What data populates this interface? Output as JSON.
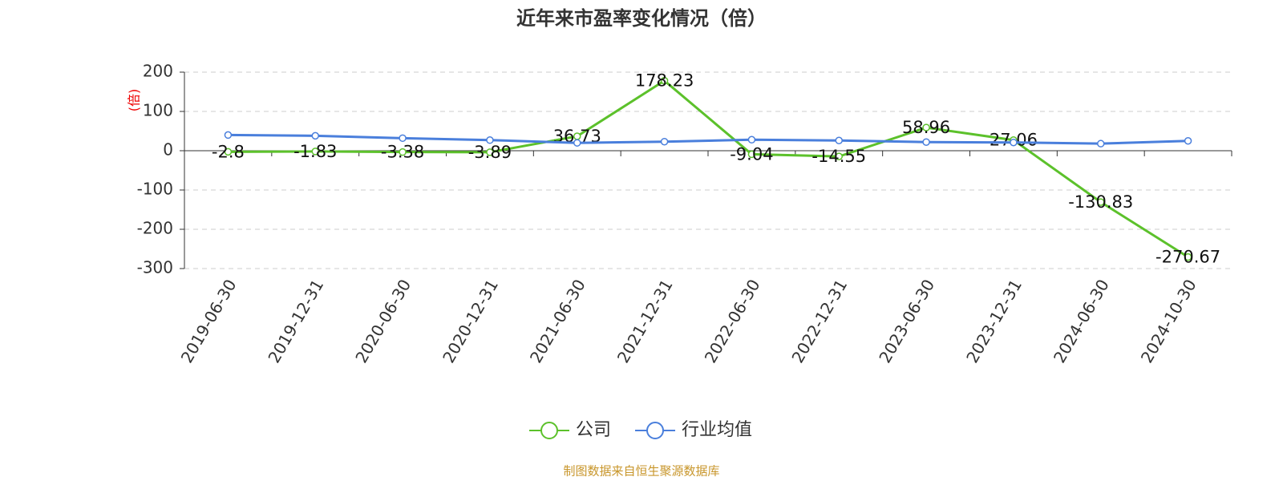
{
  "chart_data": {
    "type": "line",
    "title": "近年来市盈率变化情况（倍）",
    "y_label": "(倍)",
    "source": "制图数据来自恒生聚源数据库",
    "categories": [
      "2019-06-30",
      "2019-12-31",
      "2020-06-30",
      "2020-12-31",
      "2021-06-30",
      "2021-12-31",
      "2022-06-30",
      "2022-12-31",
      "2023-06-30",
      "2023-12-31",
      "2024-06-30",
      "2024-10-30"
    ],
    "series": [
      {
        "name": "公司",
        "color": "#5cc12b",
        "values": [
          -2.8,
          -1.83,
          -3.38,
          -3.89,
          36.73,
          178.23,
          -9.04,
          -14.55,
          58.96,
          27.06,
          -130.83,
          -270.67
        ],
        "labels": true
      },
      {
        "name": "行业均值",
        "color": "#4a7fdc",
        "values": [
          40,
          38,
          32,
          27,
          20,
          23,
          28,
          26,
          22,
          21,
          18,
          25
        ],
        "labels": false
      }
    ],
    "ylim": [
      -300,
      200
    ],
    "yticks": [
      -300,
      -200,
      -100,
      0,
      100,
      200
    ],
    "grid": true
  }
}
